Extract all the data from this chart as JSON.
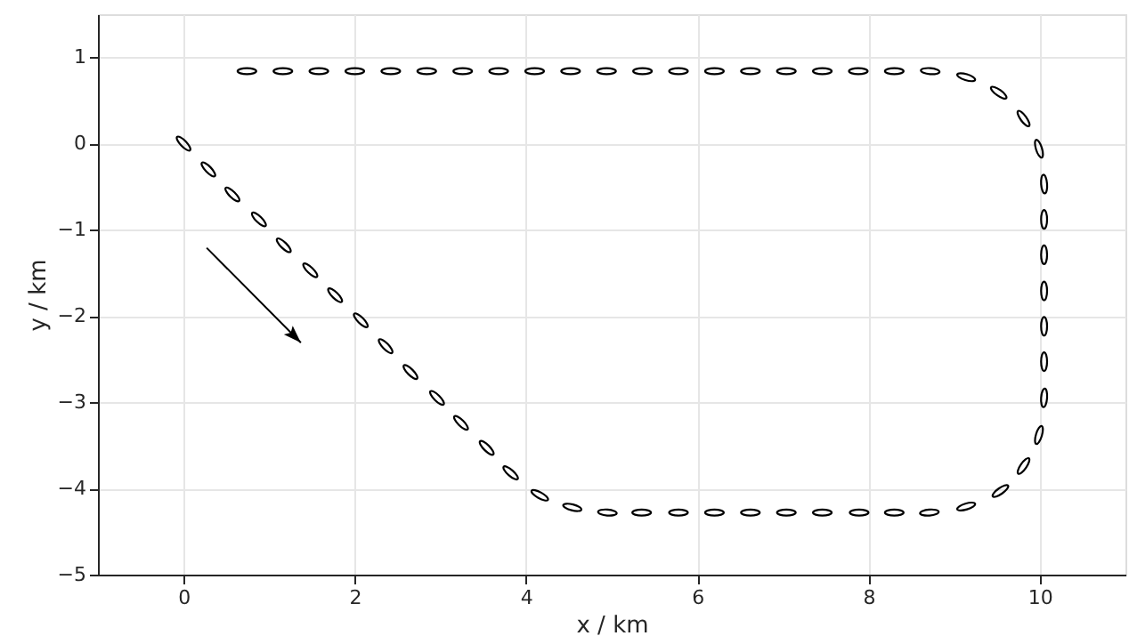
{
  "chart_data": {
    "type": "scatter",
    "xlabel": "x / km",
    "ylabel": "y / km",
    "xlim": [
      -1,
      11
    ],
    "xticks": [
      0,
      2,
      4,
      6,
      8,
      10
    ],
    "ylim": [
      -5,
      1.5
    ],
    "yticks": [
      -5,
      -4,
      -3,
      -2,
      -1,
      0,
      1
    ],
    "grid": true,
    "marker": "circle",
    "series": [
      {
        "color": "#000000",
        "x": [
          0,
          0.29,
          0.57,
          0.88,
          1.17,
          1.48,
          1.77,
          2.07,
          2.36,
          2.65,
          2.96,
          3.24,
          3.54,
          3.82,
          4.16,
          4.54,
          4.95,
          5.35,
          5.78,
          6.2,
          6.62,
          7.04,
          7.46,
          7.89,
          8.3,
          8.71,
          9.14,
          9.54,
          9.81,
          9.99,
          10.05,
          10.05,
          10.05,
          10.05,
          10.05,
          10.05,
          10.05,
          9.99,
          9.81,
          9.52,
          9.14,
          8.72,
          8.3,
          7.88,
          7.46,
          7.04,
          6.62,
          6.2,
          5.78,
          5.36,
          4.94,
          4.52,
          4.1,
          3.68,
          3.26,
          2.84,
          2.42,
          2.0,
          1.58,
          1.16,
          0.74
        ],
        "values": [
          0,
          -0.3,
          -0.59,
          -0.88,
          -1.18,
          -1.47,
          -1.76,
          -2.05,
          -2.35,
          -2.65,
          -2.95,
          -3.24,
          -3.53,
          -3.82,
          -4.08,
          -4.22,
          -4.28,
          -4.28,
          -4.28,
          -4.28,
          -4.28,
          -4.28,
          -4.28,
          -4.28,
          -4.28,
          -4.28,
          -4.21,
          -4.03,
          -3.74,
          -3.38,
          -2.95,
          -2.53,
          -2.12,
          -1.71,
          -1.29,
          -0.88,
          -0.47,
          -0.06,
          0.29,
          0.59,
          0.77,
          0.84,
          0.84,
          0.84,
          0.84,
          0.84,
          0.84,
          0.84,
          0.84,
          0.84,
          0.84,
          0.84,
          0.84,
          0.84,
          0.84,
          0.84,
          0.84,
          0.84,
          0.84,
          0.84,
          0.84
        ]
      }
    ]
  }
}
